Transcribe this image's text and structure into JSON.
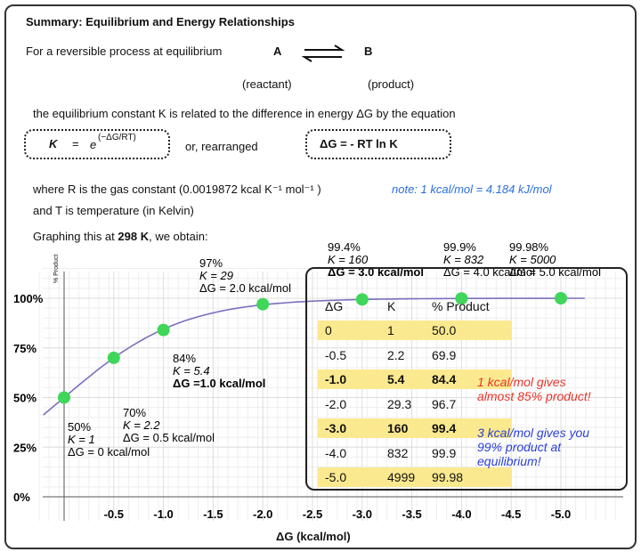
{
  "title": "Summary: Equilibrium and Energy Relationships",
  "intro": "For a reversible process at equilibrium",
  "reactant": "A",
  "product": "B",
  "reactant_label": "(reactant)",
  "product_label": "(product)",
  "relation": "the equilibrium constant K is related to the difference in energy ΔG by the equation",
  "eq1": {
    "lhs": "K",
    "eq": "=",
    "base": "e",
    "exp": "(−ΔG/RT)"
  },
  "or_text": "or, rearranged",
  "eq2": "ΔG  =  - RT  ln K",
  "gas_const": "where R is the gas constant (0.0019872  kcal  K⁻¹ mol⁻¹ )",
  "note": "note: 1 kcal/mol = 4.184 kJ/mol",
  "temp_text": "and T is temperature (in Kelvin)",
  "graph_intro": "Graphing this at ",
  "graph_temp": "298 K",
  "graph_intro_end": ", we obtain:",
  "chart_data": {
    "type": "line",
    "xlabel": "ΔG (kcal/mol)",
    "ylabel": "% Product",
    "xticks": [
      "-0.5",
      "-1.0",
      "-1.5",
      "-2.0",
      "-2.5",
      "-3.0",
      "-3.5",
      "-4.0",
      "-4.5",
      "-5.0"
    ],
    "yticks": [
      "0%",
      "25%",
      "50%",
      "75%",
      "100%"
    ],
    "ylim": [
      0,
      100
    ],
    "xlim": [
      0.4,
      -5.5
    ],
    "grid": true,
    "curve_color": "#7b6fbf",
    "point_color": "#3fd65a",
    "points": [
      {
        "x": 0,
        "y": 50,
        "label": [
          "50%",
          "K = 1",
          "ΔG = 0 kcal/mol"
        ]
      },
      {
        "x": -0.5,
        "y": 70,
        "label": [
          "70%",
          "K = 2.2",
          "ΔG = 0.5 kcal/mol"
        ]
      },
      {
        "x": -1.0,
        "y": 84,
        "label": [
          "84%",
          "K = 5.4",
          "ΔG =1.0 kcal/mol"
        ]
      },
      {
        "x": -2.0,
        "y": 97,
        "label": [
          "97%",
          "K = 29",
          "ΔG = 2.0 kcal/mol"
        ]
      },
      {
        "x": -3.0,
        "y": 99.4,
        "label": [
          "99.4%",
          "K = 160",
          "ΔG = 3.0 kcal/mol"
        ]
      },
      {
        "x": -4.0,
        "y": 99.9,
        "label": [
          "99.9%",
          "K = 832",
          "ΔG = 4.0 kcal/mol"
        ]
      },
      {
        "x": -5.0,
        "y": 99.98,
        "label": [
          "99.98%",
          "K = 5000",
          "ΔG = 5.0 kcal/mol"
        ]
      }
    ]
  },
  "table": {
    "headers": [
      "ΔG",
      "K",
      "% Product"
    ],
    "rows": [
      [
        "0",
        "1",
        "50.0"
      ],
      [
        "-0.5",
        "2.2",
        "69.9"
      ],
      [
        "-1.0",
        "5.4",
        "84.4"
      ],
      [
        "-2.0",
        "29.3",
        "96.7"
      ],
      [
        "-3.0",
        "160",
        "99.4"
      ],
      [
        "-4.0",
        "832",
        "99.9"
      ],
      [
        "-5.0",
        "4999",
        "99.98"
      ]
    ],
    "highlight_color": "#fbe98f"
  },
  "callout_red": [
    "1 kcal/mol gives",
    "almost 85% product!"
  ],
  "callout_blue": [
    "3 kcal/mol gives you",
    "99% product at",
    "equilibrium!"
  ],
  "red": "#e8332a",
  "blue_arrow": "#2a3fd6"
}
